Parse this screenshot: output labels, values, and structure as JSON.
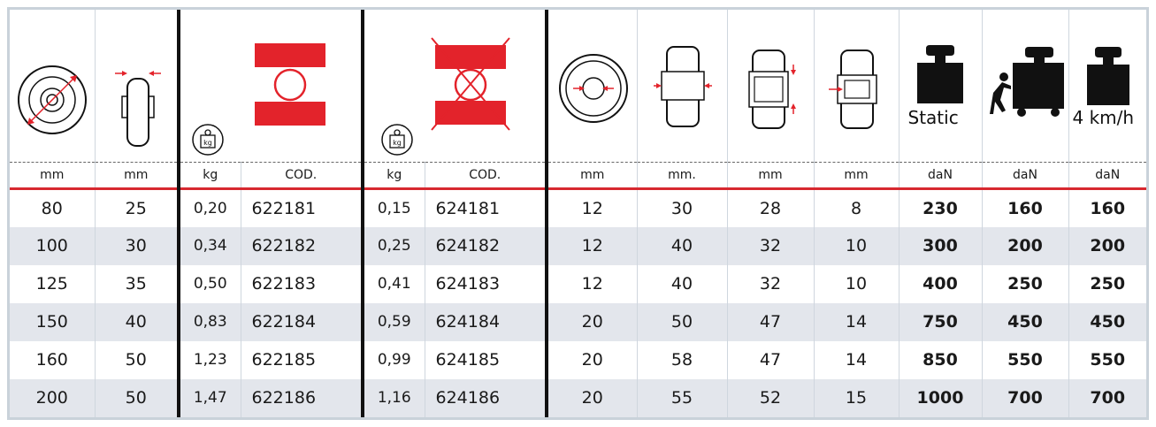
{
  "headers": {
    "static_label": "Static",
    "speed_label": "4 km/h",
    "kg_badge": "kg"
  },
  "units": [
    "mm",
    "mm",
    "kg",
    "COD.",
    "kg",
    "COD.",
    "mm",
    "mm.",
    "mm",
    "mm",
    "daN",
    "daN",
    "daN"
  ],
  "rows": [
    [
      "80",
      "25",
      "0,20",
      "622181",
      "0,15",
      "624181",
      "12",
      "30",
      "28",
      "8",
      "230",
      "160",
      "160"
    ],
    [
      "100",
      "30",
      "0,34",
      "622182",
      "0,25",
      "624182",
      "12",
      "40",
      "32",
      "10",
      "300",
      "200",
      "200"
    ],
    [
      "125",
      "35",
      "0,50",
      "622183",
      "0,41",
      "624183",
      "12",
      "40",
      "32",
      "10",
      "400",
      "250",
      "250"
    ],
    [
      "150",
      "40",
      "0,83",
      "622184",
      "0,59",
      "624184",
      "20",
      "50",
      "47",
      "14",
      "750",
      "450",
      "450"
    ],
    [
      "160",
      "50",
      "1,23",
      "622185",
      "0,99",
      "624185",
      "20",
      "58",
      "47",
      "14",
      "850",
      "550",
      "550"
    ],
    [
      "200",
      "50",
      "1,47",
      "622186",
      "1,16",
      "624186",
      "20",
      "55",
      "52",
      "15",
      "1000",
      "700",
      "700"
    ]
  ],
  "colors": {
    "accent_red": "#e3232b",
    "row_alt": "#e3e6ec",
    "divider": "#111111"
  }
}
